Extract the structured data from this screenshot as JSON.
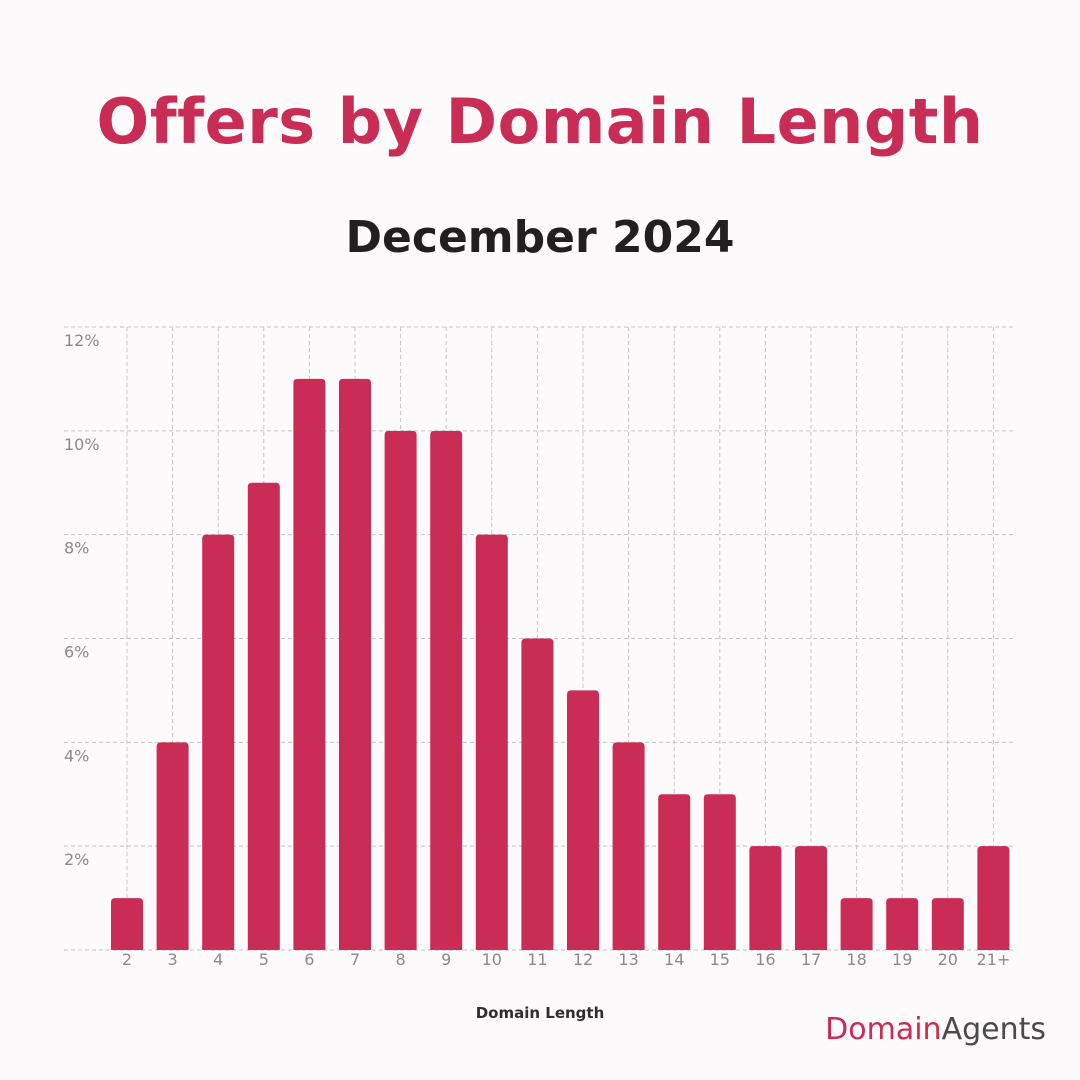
{
  "brand": {
    "title": "Offers by Domain Length",
    "subtitle": "December 2024",
    "logo_part1": "Domain",
    "logo_part2": "Agents",
    "accent_color": "#c92d55",
    "text_color": "#231f20"
  },
  "chart_data": {
    "type": "bar",
    "title": "Offers by Domain Length",
    "subtitle": "December 2024",
    "xlabel": "Domain Length",
    "ylabel": "",
    "categories": [
      "2",
      "3",
      "4",
      "5",
      "6",
      "7",
      "8",
      "9",
      "10",
      "11",
      "12",
      "13",
      "14",
      "15",
      "16",
      "17",
      "18",
      "19",
      "20",
      "21+"
    ],
    "values": [
      1,
      4,
      8,
      9,
      11,
      11,
      10,
      10,
      8,
      6,
      5,
      4,
      3,
      3,
      2,
      2,
      1,
      1,
      1,
      2
    ],
    "ylim": [
      0,
      12
    ],
    "yticks": [
      2,
      4,
      6,
      8,
      10,
      12
    ],
    "ytick_labels": [
      "2%",
      "4%",
      "6%",
      "8%",
      "10%",
      "12%"
    ],
    "grid": true,
    "bar_color": "#c92d55"
  }
}
